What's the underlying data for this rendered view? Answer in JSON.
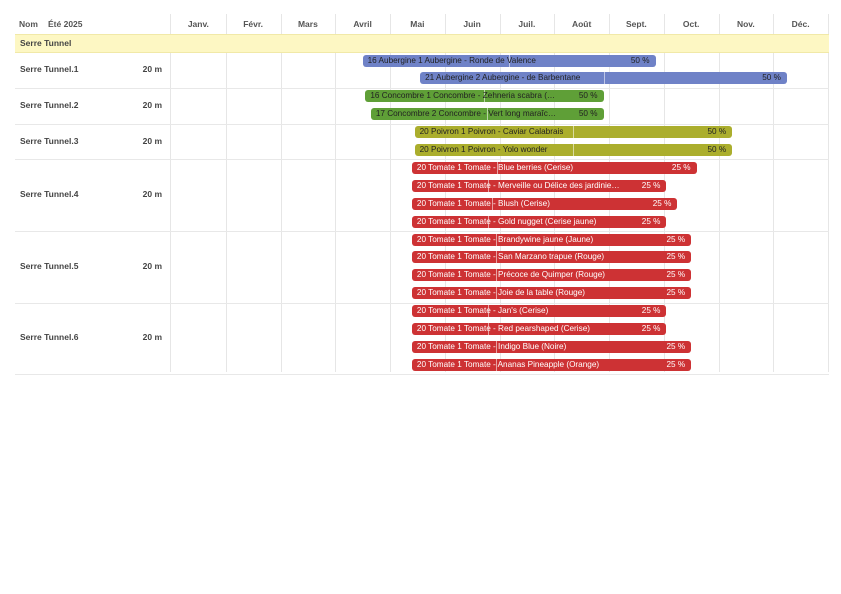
{
  "header": {
    "name_label": "Nom",
    "season_label": "Été 2025",
    "months": [
      "Janv.",
      "Févr.",
      "Mars",
      "Avril",
      "Mai",
      "Juin",
      "Juil.",
      "Août",
      "Sept.",
      "Oct.",
      "Nov.",
      "Déc."
    ]
  },
  "group": {
    "label": "Serre Tunnel"
  },
  "colors": {
    "aubergine": "#6f82c7",
    "concombre": "#5f9f37",
    "poivron": "#abae2d",
    "tomate": "#cd3234",
    "group_bg": "#fdf7c3"
  },
  "beds": [
    {
      "name": "Serre Tunnel.1",
      "length": "20 m",
      "crops": [
        {
          "label": "16 Aubergine 1 Aubergine - Ronde de Valence",
          "percent": "50 %",
          "color": "aubergine",
          "start_month": 4.5,
          "end_month": 9.85,
          "progress": 0.5
        },
        {
          "label": "21 Aubergine 2 Aubergine - de Barbentane",
          "percent": "50 %",
          "color": "aubergine",
          "start_month": 5.55,
          "end_month": 12.25,
          "progress": 0.5
        }
      ]
    },
    {
      "name": "Serre Tunnel.2",
      "length": "20 m",
      "crops": [
        {
          "label": "16 Concombre 1 Concombre - Zehneria scabra (…",
          "percent": "50 %",
          "color": "concombre",
          "start_month": 4.55,
          "end_month": 8.9,
          "progress": 0.5
        },
        {
          "label": "17 Concombre 2 Concombre - Vert long maraîc…",
          "percent": "50 %",
          "color": "concombre",
          "start_month": 4.65,
          "end_month": 8.9,
          "progress": 0.5
        }
      ]
    },
    {
      "name": "Serre Tunnel.3",
      "length": "20 m",
      "crops": [
        {
          "label": "20 Poivron 1 Poivron - Caviar Calabrais",
          "percent": "50 %",
          "color": "poivron",
          "start_month": 5.45,
          "end_month": 11.25,
          "progress": 0.5
        },
        {
          "label": "20 Poivron 1 Poivron - Yolo wonder",
          "percent": "50 %",
          "color": "poivron",
          "start_month": 5.45,
          "end_month": 11.25,
          "progress": 0.5
        }
      ]
    },
    {
      "name": "Serre Tunnel.4",
      "length": "20 m",
      "crops": [
        {
          "label": "20 Tomate 1 Tomate - Blue berries (Cerise)",
          "percent": "25 %",
          "color": "tomate",
          "start_month": 5.4,
          "end_month": 10.6,
          "progress": 0.3
        },
        {
          "label": "20 Tomate 1 Tomate - Merveille ou Délice des jardinie…",
          "percent": "25 %",
          "color": "tomate",
          "start_month": 5.4,
          "end_month": 10.05,
          "progress": 0.3
        },
        {
          "label": "20 Tomate 1 Tomate - Blush (Cerise)",
          "percent": "25 %",
          "color": "tomate",
          "start_month": 5.4,
          "end_month": 10.25,
          "progress": 0.3
        },
        {
          "label": "20 Tomate 1 Tomate - Gold nugget (Cerise jaune)",
          "percent": "25 %",
          "color": "tomate",
          "start_month": 5.4,
          "end_month": 10.05,
          "progress": 0.3
        }
      ]
    },
    {
      "name": "Serre Tunnel.5",
      "length": "20 m",
      "crops": [
        {
          "label": "20 Tomate 1 Tomate - Brandywine jaune (Jaune)",
          "percent": "25 %",
          "color": "tomate",
          "start_month": 5.4,
          "end_month": 10.5,
          "progress": 0.3
        },
        {
          "label": "20 Tomate 1 Tomate - San Marzano trapue (Rouge)",
          "percent": "25 %",
          "color": "tomate",
          "start_month": 5.4,
          "end_month": 10.5,
          "progress": 0.3
        },
        {
          "label": "20 Tomate 1 Tomate - Précoce de Quimper (Rouge)",
          "percent": "25 %",
          "color": "tomate",
          "start_month": 5.4,
          "end_month": 10.5,
          "progress": 0.3
        },
        {
          "label": "20 Tomate 1 Tomate - Joie de la table (Rouge)",
          "percent": "25 %",
          "color": "tomate",
          "start_month": 5.4,
          "end_month": 10.5,
          "progress": 0.3
        }
      ]
    },
    {
      "name": "Serre Tunnel.6",
      "length": "20 m",
      "crops": [
        {
          "label": "20 Tomate 1 Tomate - Jan's (Cerise)",
          "percent": "25 %",
          "color": "tomate",
          "start_month": 5.4,
          "end_month": 10.05,
          "progress": 0.3
        },
        {
          "label": "20 Tomate 1 Tomate - Red pearshaped (Cerise)",
          "percent": "25 %",
          "color": "tomate",
          "start_month": 5.4,
          "end_month": 10.05,
          "progress": 0.3
        },
        {
          "label": "20 Tomate 1 Tomate - Indigo Blue (Noire)",
          "percent": "25 %",
          "color": "tomate",
          "start_month": 5.4,
          "end_month": 10.5,
          "progress": 0.3
        },
        {
          "label": "20 Tomate 1 Tomate - Ananas Pineapple (Orange)",
          "percent": "25 %",
          "color": "tomate",
          "start_month": 5.4,
          "end_month": 10.5,
          "progress": 0.3
        }
      ]
    }
  ]
}
